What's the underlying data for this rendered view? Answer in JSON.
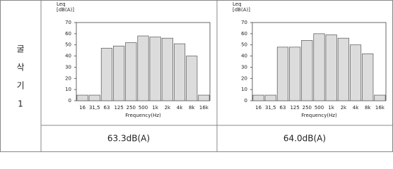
{
  "table": {
    "row_label": [
      "굴",
      "삭",
      "기",
      "1"
    ],
    "results": [
      "63.3dB(A)",
      "64.0dB(A)"
    ]
  },
  "chart_data": [
    {
      "type": "bar",
      "ylabel": [
        "Leq",
        "[dB(A)]"
      ],
      "xlabel": "Frequency(Hz)",
      "categories": [
        "16",
        "31,5",
        "63",
        "125",
        "250",
        "500",
        "1k",
        "2k",
        "4k",
        "8k",
        "16k"
      ],
      "values": [
        5,
        5,
        47,
        49,
        52,
        58,
        57,
        56,
        51,
        40,
        5
      ],
      "color": "#dcdcdc",
      "ylim": [
        0,
        70
      ],
      "yticks": [
        0,
        10,
        20,
        30,
        40,
        50,
        60,
        70
      ]
    },
    {
      "type": "bar",
      "ylabel": [
        "Leq",
        "[dB(A)]"
      ],
      "xlabel": "Frequency(Hz)",
      "categories": [
        "16",
        "31,5",
        "63",
        "125",
        "250",
        "500",
        "1k",
        "2k",
        "4k",
        "8k",
        "16k"
      ],
      "values": [
        5,
        5,
        48,
        48,
        54,
        60,
        59,
        56,
        50,
        42,
        5
      ],
      "color": "#dcdcdc",
      "ylim": [
        0,
        70
      ],
      "yticks": [
        0,
        10,
        20,
        30,
        40,
        50,
        60,
        70
      ]
    }
  ]
}
